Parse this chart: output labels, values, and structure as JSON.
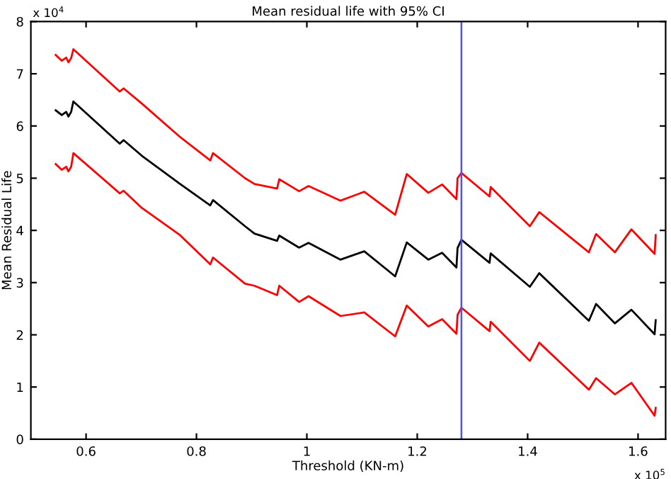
{
  "chart_data": {
    "type": "line",
    "title": "Mean residual life with 95% CI",
    "xlabel": "Threshold (KN-m)",
    "ylabel": "Mean Residual Life",
    "x": [
      0.545,
      0.556,
      0.564,
      0.568,
      0.573,
      0.577,
      0.661,
      0.668,
      0.701,
      0.769,
      0.825,
      0.83,
      0.888,
      0.905,
      0.946,
      0.95,
      0.986,
      1.003,
      1.061,
      1.104,
      1.16,
      1.181,
      1.22,
      1.245,
      1.271,
      1.273,
      1.28,
      1.331,
      1.333,
      1.404,
      1.421,
      1.511,
      1.524,
      1.558,
      1.588,
      1.63,
      1.632
    ],
    "series": [
      {
        "color": "#ff0000",
        "values": [
          7.36,
          7.25,
          7.31,
          7.22,
          7.3,
          7.47,
          6.66,
          6.72,
          6.43,
          5.8,
          5.34,
          5.48,
          5.0,
          4.89,
          4.8,
          4.98,
          4.75,
          4.85,
          4.57,
          4.74,
          4.3,
          5.08,
          4.72,
          4.88,
          4.6,
          5.0,
          5.1,
          4.65,
          4.83,
          4.08,
          4.35,
          3.58,
          3.93,
          3.58,
          4.02,
          3.55,
          3.91
        ]
      },
      {
        "color": "#000000",
        "values": [
          6.3,
          6.21,
          6.27,
          6.18,
          6.27,
          6.47,
          5.66,
          5.73,
          5.43,
          4.9,
          4.48,
          4.58,
          4.08,
          3.94,
          3.8,
          3.9,
          3.67,
          3.76,
          3.44,
          3.6,
          3.12,
          3.77,
          3.44,
          3.57,
          3.29,
          3.66,
          3.82,
          3.38,
          3.56,
          2.92,
          3.18,
          2.27,
          2.59,
          2.22,
          2.48,
          2.01,
          2.28
        ]
      },
      {
        "color": "#ff0000",
        "values": [
          5.27,
          5.16,
          5.22,
          5.13,
          5.22,
          5.48,
          4.71,
          4.76,
          4.43,
          3.92,
          3.35,
          3.48,
          2.98,
          2.94,
          2.76,
          2.94,
          2.63,
          2.74,
          2.36,
          2.43,
          1.97,
          2.56,
          2.16,
          2.3,
          2.02,
          2.38,
          2.52,
          2.07,
          2.25,
          1.5,
          1.85,
          0.95,
          1.17,
          0.86,
          1.08,
          0.45,
          0.6
        ]
      }
    ],
    "xlim": [
      0.5,
      1.65
    ],
    "xticks": [
      0.6,
      0.8,
      1,
      1.2,
      1.4,
      1.6
    ],
    "ylim": [
      0,
      8
    ],
    "yticks": [
      0,
      1,
      2,
      3,
      4,
      5,
      6,
      7,
      8
    ],
    "ref_lines": [
      {
        "axis": "x",
        "value": 1.28,
        "color": "#5050ff"
      }
    ],
    "annotations": [
      "x 10$^{4}$",
      "x 10$^{5}$"
    ],
    "grid": false,
    "legend": false,
    "line_style": "solid",
    "marker": "none"
  }
}
